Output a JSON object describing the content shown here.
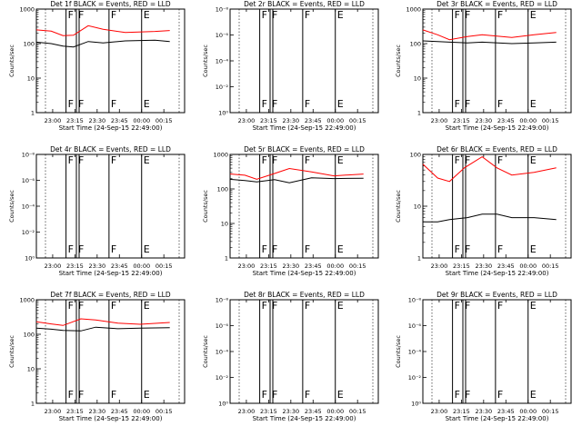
{
  "chart_data": {
    "type": "line",
    "x_tick_labels": [
      "23:00",
      "23:15",
      "23:30",
      "23:45",
      "00:00",
      "00:15"
    ],
    "xlabel": "Start Time (24-Sep-15 22:49:00)",
    "ylabel": "Counts/sec",
    "y_tick_labels_linear_decade": [
      "1",
      "10",
      "100",
      "1000"
    ],
    "y_tick_labels_tiny": [
      "10⁰",
      "10⁻²",
      "10⁻⁴",
      "10⁻⁶",
      "10⁻⁸"
    ],
    "series_colors": {
      "events": "#000000",
      "lld": "#ff0000"
    },
    "vertical_markers": [
      {
        "time": "23:09:30",
        "label": "F"
      },
      {
        "time": "23:16:00",
        "label": "F",
        "double": true
      },
      {
        "time": "23:38:00",
        "label": "F"
      },
      {
        "time": "00:00:00",
        "label": "E"
      }
    ],
    "panels": [
      {
        "title": "Det 1f  BLACK = Events, RED = LLD",
        "yscale": "decade",
        "lld_points": [
          [
            0,
            250
          ],
          [
            10,
            230
          ],
          [
            18,
            170
          ],
          [
            25,
            175
          ],
          [
            35,
            330
          ],
          [
            45,
            260
          ],
          [
            60,
            210
          ],
          [
            80,
            225
          ],
          [
            90,
            240
          ]
        ],
        "events_points": [
          [
            0,
            110
          ],
          [
            10,
            100
          ],
          [
            18,
            85
          ],
          [
            25,
            80
          ],
          [
            35,
            115
          ],
          [
            45,
            105
          ],
          [
            60,
            120
          ],
          [
            80,
            125
          ],
          [
            90,
            115
          ]
        ]
      },
      {
        "title": "Det 2r  BLACK = Events, RED = LLD",
        "yscale": "tiny"
      },
      {
        "title": "Det 3r  BLACK = Events, RED = LLD",
        "yscale": "decade",
        "lld_points": [
          [
            0,
            250
          ],
          [
            10,
            180
          ],
          [
            18,
            130
          ],
          [
            30,
            160
          ],
          [
            40,
            180
          ],
          [
            60,
            150
          ],
          [
            75,
            180
          ],
          [
            90,
            210
          ]
        ],
        "events_points": [
          [
            0,
            120
          ],
          [
            10,
            115
          ],
          [
            18,
            110
          ],
          [
            30,
            105
          ],
          [
            40,
            110
          ],
          [
            60,
            100
          ],
          [
            75,
            105
          ],
          [
            90,
            110
          ]
        ]
      },
      {
        "title": "Det 4r  BLACK = Events, RED = LLD",
        "yscale": "tiny"
      },
      {
        "title": "Det 5r  BLACK = Events, RED = LLD",
        "yscale": "decade",
        "lld_points": [
          [
            0,
            270
          ],
          [
            10,
            250
          ],
          [
            18,
            190
          ],
          [
            30,
            280
          ],
          [
            40,
            390
          ],
          [
            55,
            310
          ],
          [
            70,
            240
          ],
          [
            90,
            270
          ]
        ],
        "events_points": [
          [
            0,
            190
          ],
          [
            10,
            175
          ],
          [
            18,
            160
          ],
          [
            30,
            185
          ],
          [
            40,
            150
          ],
          [
            55,
            210
          ],
          [
            70,
            200
          ],
          [
            90,
            205
          ]
        ]
      },
      {
        "title": "Det 6r  BLACK = Events, RED = LLD",
        "yscale": "decade_small",
        "lld_points": [
          [
            0,
            65
          ],
          [
            10,
            35
          ],
          [
            18,
            30
          ],
          [
            28,
            55
          ],
          [
            40,
            90
          ],
          [
            50,
            55
          ],
          [
            60,
            40
          ],
          [
            75,
            45
          ],
          [
            90,
            55
          ]
        ],
        "events_points": [
          [
            0,
            5
          ],
          [
            10,
            5
          ],
          [
            18,
            5.5
          ],
          [
            30,
            6
          ],
          [
            40,
            7
          ],
          [
            50,
            7
          ],
          [
            60,
            6
          ],
          [
            75,
            6
          ],
          [
            90,
            5.5
          ]
        ]
      },
      {
        "title": "Det 7f  BLACK = Events, RED = LLD",
        "yscale": "decade",
        "lld_points": [
          [
            0,
            230
          ],
          [
            10,
            200
          ],
          [
            18,
            180
          ],
          [
            30,
            280
          ],
          [
            40,
            260
          ],
          [
            55,
            210
          ],
          [
            70,
            195
          ],
          [
            90,
            220
          ]
        ],
        "events_points": [
          [
            0,
            150
          ],
          [
            10,
            140
          ],
          [
            18,
            130
          ],
          [
            30,
            125
          ],
          [
            40,
            160
          ],
          [
            55,
            145
          ],
          [
            70,
            150
          ],
          [
            90,
            155
          ]
        ]
      },
      {
        "title": "Det 8r  BLACK = Events, RED = LLD",
        "yscale": "tiny"
      },
      {
        "title": "Det 9r  BLACK = Events, RED = LLD",
        "yscale": "tiny"
      }
    ]
  }
}
